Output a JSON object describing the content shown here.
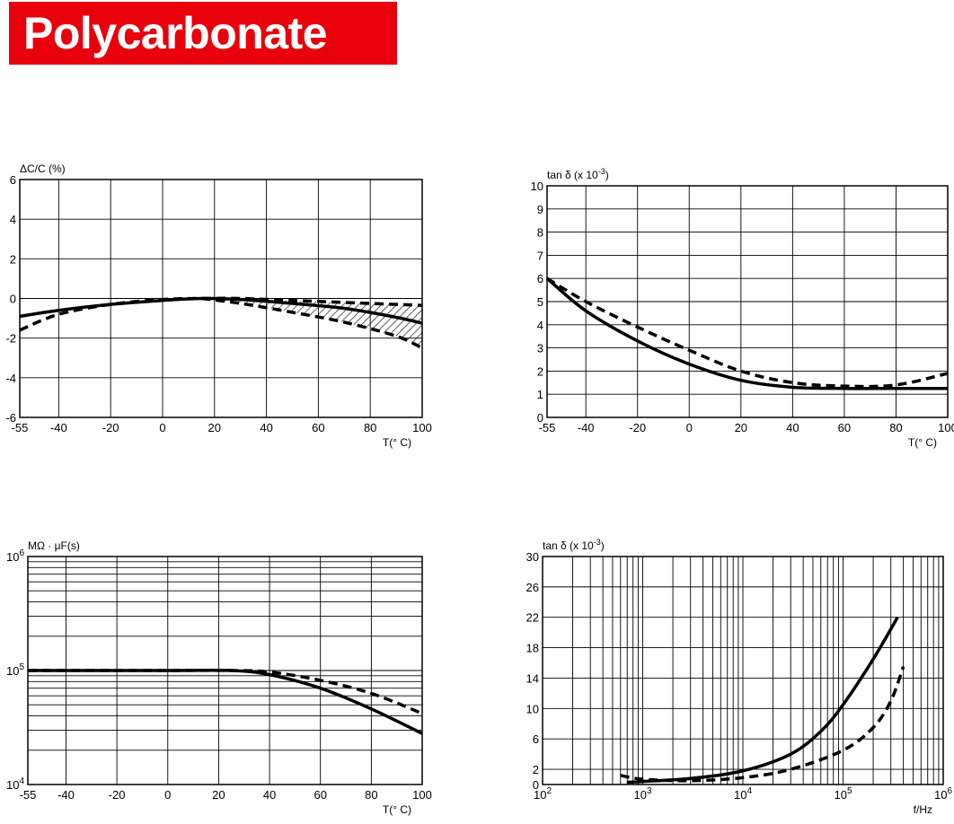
{
  "title": "Polycarbonate",
  "chart_data": [
    {
      "type": "line",
      "ylabel": "ΔC/C (%)",
      "xlabel": "T(° C)",
      "xlim": [
        -55,
        100
      ],
      "ylim": [
        -6,
        6
      ],
      "x_ticks": [
        -55,
        -40,
        -20,
        0,
        20,
        40,
        60,
        80,
        100
      ],
      "y_ticks": [
        6,
        4,
        2,
        0,
        -2,
        -4,
        -6
      ],
      "grid": true,
      "series": [
        {
          "style": "solid",
          "x": [
            -55,
            -40,
            -20,
            0,
            15,
            30,
            50,
            70,
            90,
            100
          ],
          "y": [
            -0.9,
            -0.6,
            -0.3,
            -0.1,
            0.0,
            -0.05,
            -0.25,
            -0.5,
            -0.95,
            -1.25
          ]
        },
        {
          "style": "dashed",
          "x": [
            -55,
            -40,
            -20,
            0,
            15,
            30,
            50,
            70,
            90,
            100
          ],
          "y": [
            -1.6,
            -0.8,
            -0.3,
            -0.05,
            0.0,
            0.0,
            -0.1,
            -0.2,
            -0.3,
            -0.35
          ]
        },
        {
          "style": "dashed",
          "x": [
            15,
            30,
            50,
            70,
            90,
            100
          ],
          "y": [
            0.0,
            -0.25,
            -0.7,
            -1.2,
            -1.9,
            -2.5
          ]
        }
      ],
      "hatched_band": {
        "x_from": 20,
        "x_to": 100
      }
    },
    {
      "type": "line",
      "ylabel": "tan δ (x 10",
      "ylabel_sup": "-3",
      "ylabel_close": ")",
      "xlabel": "T(° C)",
      "xlim": [
        -55,
        100
      ],
      "ylim": [
        0,
        10
      ],
      "x_ticks": [
        -55,
        -40,
        -20,
        0,
        20,
        40,
        60,
        80,
        100
      ],
      "y_ticks": [
        0,
        1,
        2,
        3,
        4,
        5,
        6,
        7,
        8,
        9,
        10
      ],
      "grid": true,
      "series": [
        {
          "style": "solid",
          "x": [
            -55,
            -40,
            -20,
            0,
            20,
            40,
            60,
            80,
            100
          ],
          "y": [
            6.0,
            4.6,
            3.3,
            2.3,
            1.6,
            1.3,
            1.25,
            1.25,
            1.25
          ]
        },
        {
          "style": "dashed",
          "x": [
            -55,
            -40,
            -20,
            0,
            20,
            40,
            60,
            80,
            100
          ],
          "y": [
            6.0,
            5.0,
            3.9,
            2.9,
            2.0,
            1.5,
            1.35,
            1.4,
            1.9
          ]
        }
      ]
    },
    {
      "type": "line",
      "ylabel": "MΩ · μF(s)",
      "xlabel": "T(° C)",
      "xlim": [
        -55,
        100
      ],
      "ylim": [
        10000,
        1000000
      ],
      "yscale": "log",
      "x_ticks": [
        -55,
        -40,
        -20,
        0,
        20,
        40,
        60,
        80,
        100
      ],
      "y_ticks": [
        {
          "base": "10",
          "exp": "6"
        },
        {
          "base": "10",
          "exp": "5"
        },
        {
          "base": "10",
          "exp": "4"
        }
      ],
      "grid": true,
      "series": [
        {
          "style": "solid",
          "x": [
            -55,
            -20,
            0,
            25,
            40,
            60,
            80,
            100
          ],
          "y": [
            100000,
            100000,
            100000,
            100000,
            92000,
            70000,
            46000,
            28000
          ]
        },
        {
          "style": "dashed",
          "x": [
            -55,
            -20,
            0,
            25,
            40,
            60,
            80,
            100
          ],
          "y": [
            100000,
            100000,
            100000,
            100000,
            97000,
            82000,
            63000,
            42000
          ]
        }
      ]
    },
    {
      "type": "line",
      "ylabel": "tan δ (x 10",
      "ylabel_sup": "-3",
      "ylabel_close": ")",
      "xlabel": "f/Hz",
      "xlim": [
        100,
        1000000
      ],
      "xscale": "log",
      "ylim": [
        0,
        30
      ],
      "x_ticks": [
        {
          "base": "10",
          "exp": "2"
        },
        {
          "base": "10",
          "exp": "3"
        },
        {
          "base": "10",
          "exp": "4"
        },
        {
          "base": "10",
          "exp": "5"
        },
        {
          "base": "10",
          "exp": "6"
        }
      ],
      "y_ticks": [
        0,
        2,
        6,
        10,
        14,
        18,
        22,
        26,
        30
      ],
      "grid": true,
      "series": [
        {
          "style": "solid",
          "x": [
            700,
            1000,
            3000,
            10000,
            30000,
            60000,
            100000,
            200000,
            350000
          ],
          "y": [
            0.3,
            0.4,
            0.8,
            1.8,
            4.0,
            7.0,
            10.5,
            16.5,
            22.0
          ]
        },
        {
          "style": "dashed",
          "x": [
            600,
            1000,
            3000,
            10000,
            30000,
            100000,
            200000,
            300000,
            400000
          ],
          "y": [
            1.2,
            0.7,
            0.5,
            0.9,
            2.0,
            4.5,
            7.5,
            11.0,
            15.5
          ]
        }
      ]
    }
  ]
}
